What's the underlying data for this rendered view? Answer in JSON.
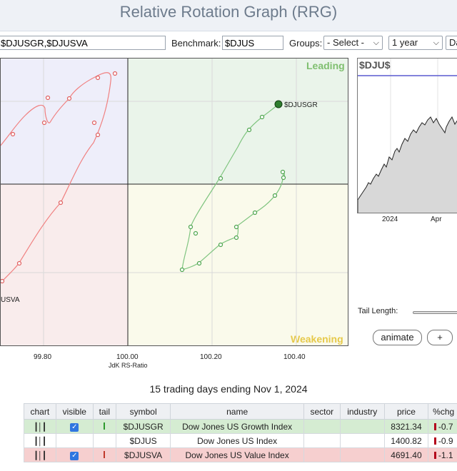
{
  "page_title": "Relative Rotation Graph (RRG)",
  "controls": {
    "symbols_value": "$DJUSGR,$DJUSVA",
    "benchmark_label": "Benchmark:",
    "benchmark_value": "$DJUS",
    "groups_label": "Groups:",
    "groups_selected": "- Select -",
    "period_selected": "1 year",
    "frequency_selected": "Da"
  },
  "rrg": {
    "quadrants": {
      "leading": "Leading",
      "weakening": "Weakening"
    },
    "x_tick_labels": [
      "99.80",
      "100.00",
      "100.20",
      "100.40"
    ],
    "x_axis_title": "JdK RS-Ratio",
    "series": [
      {
        "symbol_label": "$DJUSGR",
        "color": "#7fc47f",
        "head_color": "#2e7d2e"
      },
      {
        "symbol_label": "USVA",
        "color": "#f08080"
      }
    ]
  },
  "mini_chart": {
    "title": "$DJU$",
    "x_labels": [
      "2024",
      "Apr"
    ]
  },
  "tail_length_label": "Tail Length:",
  "buttons": {
    "animate": "animate",
    "plus": "+"
  },
  "caption": "15 trading days ending Nov 1, 2024",
  "table": {
    "headers": [
      "chart",
      "visible",
      "tail",
      "symbol",
      "name",
      "sector",
      "industry",
      "price",
      "%chg"
    ],
    "rows": [
      {
        "symbol": "$DJUSGR",
        "name": "Dow Jones US Growth Index",
        "sector": "",
        "industry": "",
        "price": "8321.34",
        "chg": "-0.7",
        "visible": true,
        "tail_color": "#2e9a2e"
      },
      {
        "symbol": "$DJUS",
        "name": "Dow Jones US Index",
        "sector": "",
        "industry": "",
        "price": "1400.82",
        "chg": "-0.9",
        "visible": false,
        "tail_color": ""
      },
      {
        "symbol": "$DJUSVA",
        "name": "Dow Jones US Value Index",
        "sector": "",
        "industry": "",
        "price": "4691.40",
        "chg": "-1.1",
        "visible": true,
        "tail_color": "#c0392b"
      }
    ]
  }
}
